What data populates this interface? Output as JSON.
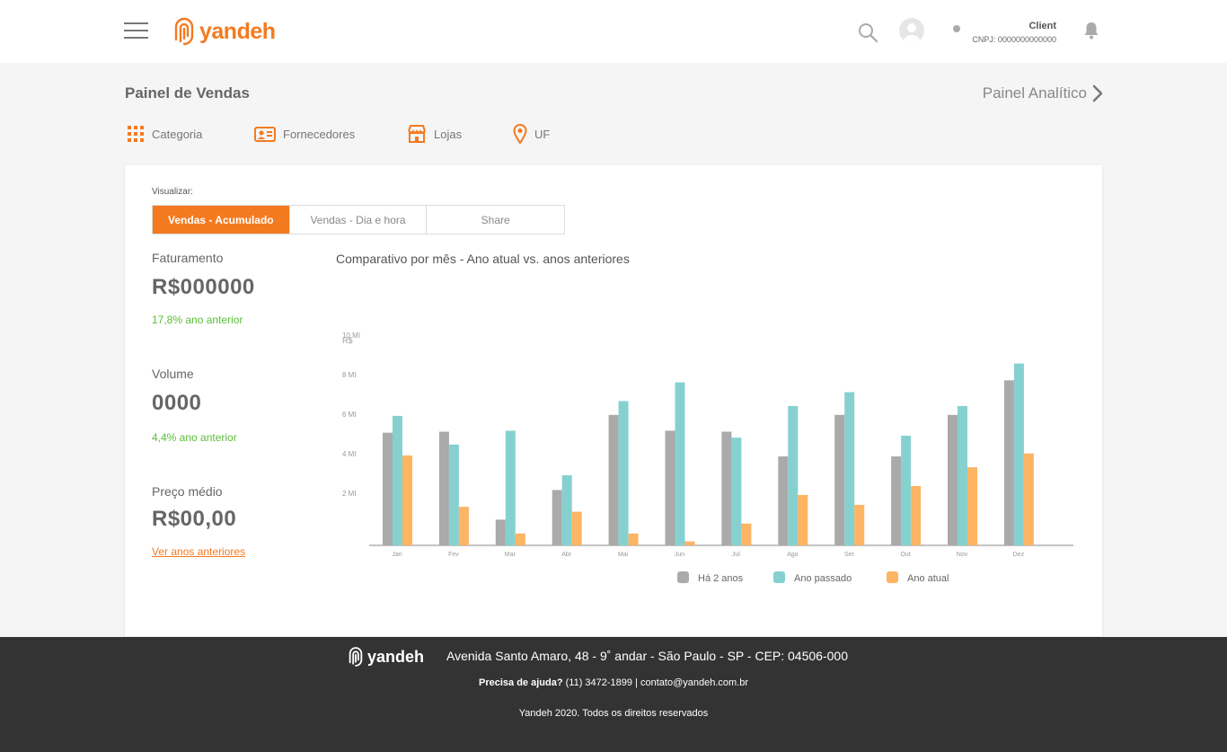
{
  "header": {
    "logo_text": "yandeh",
    "user_name": "Client",
    "user_cnpj": "CNPJ: 0000000000000",
    "icons": [
      "menu-icon",
      "search-icon",
      "avatar-icon",
      "bell-icon"
    ]
  },
  "page": {
    "title": "Painel de Vendas",
    "analytic_link": "Painel Analítico"
  },
  "filters": [
    {
      "label": "Categoria",
      "icon": "grid-icon"
    },
    {
      "label": "Fornecedores",
      "icon": "contact-card-icon"
    },
    {
      "label": "Lojas",
      "icon": "store-icon"
    },
    {
      "label": "UF",
      "icon": "location-pin-icon"
    }
  ],
  "visualize": {
    "label": "Visualizar:",
    "options": [
      "Vendas - Acumulado",
      "Vendas - Dia e hora",
      "Share"
    ],
    "active": "Vendas - Acumulado"
  },
  "metrics": [
    {
      "label": "Faturamento",
      "value": "R$000000",
      "change": "17,8% ano anterior"
    },
    {
      "label": "Volume",
      "value": "0000",
      "change": "4,4% ano anterior"
    },
    {
      "label": "Preço médio",
      "value": "R$00,00"
    }
  ],
  "see_years_link": "Ver anos anteriores",
  "chart_data": {
    "type": "bar",
    "title": "Comparativo por mês - Ano atual vs. anos anteriores",
    "ylabel": "R$",
    "ytick_labels": [
      "2 MI",
      "4 MI",
      "6 MI",
      "8 MI",
      "10 MI"
    ],
    "ylim": [
      0,
      10
    ],
    "categories": [
      "Jan",
      "Fev",
      "Mar",
      "Abr",
      "Mai",
      "Jun",
      "Jul",
      "Ago",
      "Set",
      "Out",
      "Nov",
      "Dez"
    ],
    "series": [
      {
        "name": "Há 2 anos",
        "color": "#aaaaaa",
        "values": [
          5.7,
          5.75,
          1.3,
          2.8,
          6.6,
          5.8,
          5.75,
          4.5,
          6.6,
          4.5,
          6.6,
          8.35
        ]
      },
      {
        "name": "Ano passado",
        "color": "#86d1d0",
        "values": [
          6.55,
          5.1,
          5.8,
          3.55,
          7.3,
          8.25,
          5.45,
          7.05,
          7.75,
          5.55,
          7.05,
          9.2
        ]
      },
      {
        "name": "Ano atual",
        "color": "#fdb463",
        "values": [
          4.55,
          1.95,
          0.6,
          1.7,
          0.6,
          0.2,
          1.1,
          2.55,
          2.05,
          3.0,
          3.95,
          4.65
        ]
      }
    ],
    "legend_position": "bottom-center"
  },
  "footer": {
    "logo_text": "yandeh",
    "address": "Avenida Santo Amaro, 48 - 9˚ andar - São Paulo - SP - CEP: 04506-000",
    "help_label": "Precisa de ajuda?",
    "help_contact": "(11) 3472-1899 | contato@yandeh.com.br",
    "copyright": "Yandeh 2020. Todos os direitos reservados"
  }
}
